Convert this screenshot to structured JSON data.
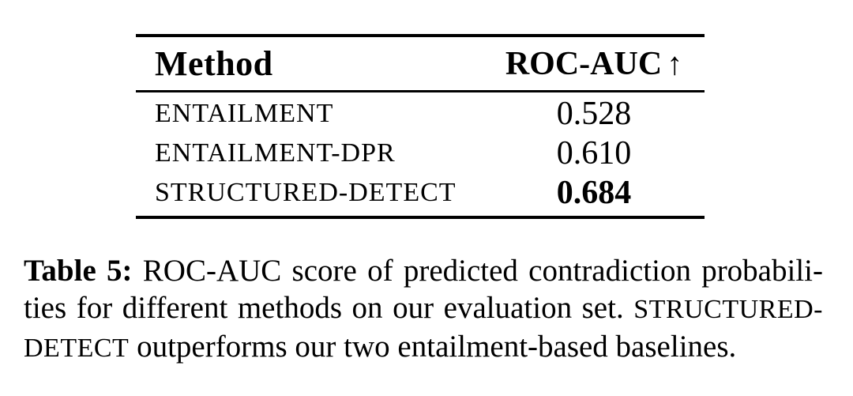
{
  "table": {
    "header": {
      "method_label": "Method",
      "score_label": "ROC-AUC",
      "arrow": "↑"
    },
    "rows": [
      {
        "method": "ENTAILMENT",
        "value": "0.528"
      },
      {
        "method": "ENTAILMENT-DPR",
        "value": "0.610"
      },
      {
        "method": "STRUCTURED-DETECT",
        "value": "0.684"
      }
    ]
  },
  "caption": {
    "label": "Table 5:",
    "line1_rest": " ROC-AUC score of predicted contradiction probabili-",
    "line2_text": "ties for different methods on our evaluation set. ",
    "line2_smallcaps": "STRUCTURED-",
    "line3_smallcaps": "DETECT",
    "line3_rest": " outperforms our two entailment-based baselines."
  },
  "colors": {
    "text": "#000000",
    "background": "#ffffff"
  }
}
